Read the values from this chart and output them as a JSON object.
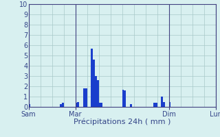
{
  "xlabel": "Précipitations 24h ( mm )",
  "background_color": "#d8f0f0",
  "bar_color": "#1a3ecc",
  "grid_color": "#a8c8c8",
  "axis_color": "#404080",
  "ylim": [
    0,
    10
  ],
  "yticks": [
    0,
    1,
    2,
    3,
    4,
    5,
    6,
    7,
    8,
    9,
    10
  ],
  "bar_values": [
    0.3,
    0.0,
    0.0,
    0.0,
    0.0,
    0.0,
    0.0,
    0.0,
    0.0,
    0.0,
    0.0,
    0.0,
    0.0,
    0.0,
    0.0,
    0.0,
    0.3,
    0.4,
    0.0,
    0.0,
    0.0,
    0.0,
    0.0,
    0.0,
    0.4,
    0.5,
    0.0,
    0.0,
    1.8,
    1.8,
    0.0,
    0.0,
    5.7,
    4.6,
    3.0,
    2.6,
    0.4,
    0.4,
    0.0,
    0.0,
    0.0,
    0.0,
    0.0,
    0.0,
    0.0,
    0.0,
    0.0,
    0.0,
    1.7,
    1.6,
    0.0,
    0.0,
    0.3,
    0.0,
    0.0,
    0.0,
    0.0,
    0.0,
    0.0,
    0.0,
    0.0,
    0.0,
    0.0,
    0.0,
    0.4,
    0.4,
    0.0,
    0.0,
    1.0,
    0.5,
    0.0,
    0.0,
    0.5,
    0.0,
    0.0,
    0.0,
    0.0,
    0.0,
    0.0,
    0.0,
    0.0,
    0.0,
    0.0,
    0.0,
    0.0,
    0.0,
    0.0,
    0.0,
    0.0,
    0.0,
    0.0,
    0.0,
    0.0,
    0.0,
    0.0,
    0.0
  ],
  "x_tick_positions": [
    0,
    24,
    72,
    96
  ],
  "x_tick_labels": [
    "Sam",
    "Mar",
    "Dim",
    "Lun"
  ],
  "tick_label_color": "#334488",
  "tick_fontsize": 7.0,
  "xlabel_fontsize": 8.0,
  "ytick_fontsize": 7.0
}
